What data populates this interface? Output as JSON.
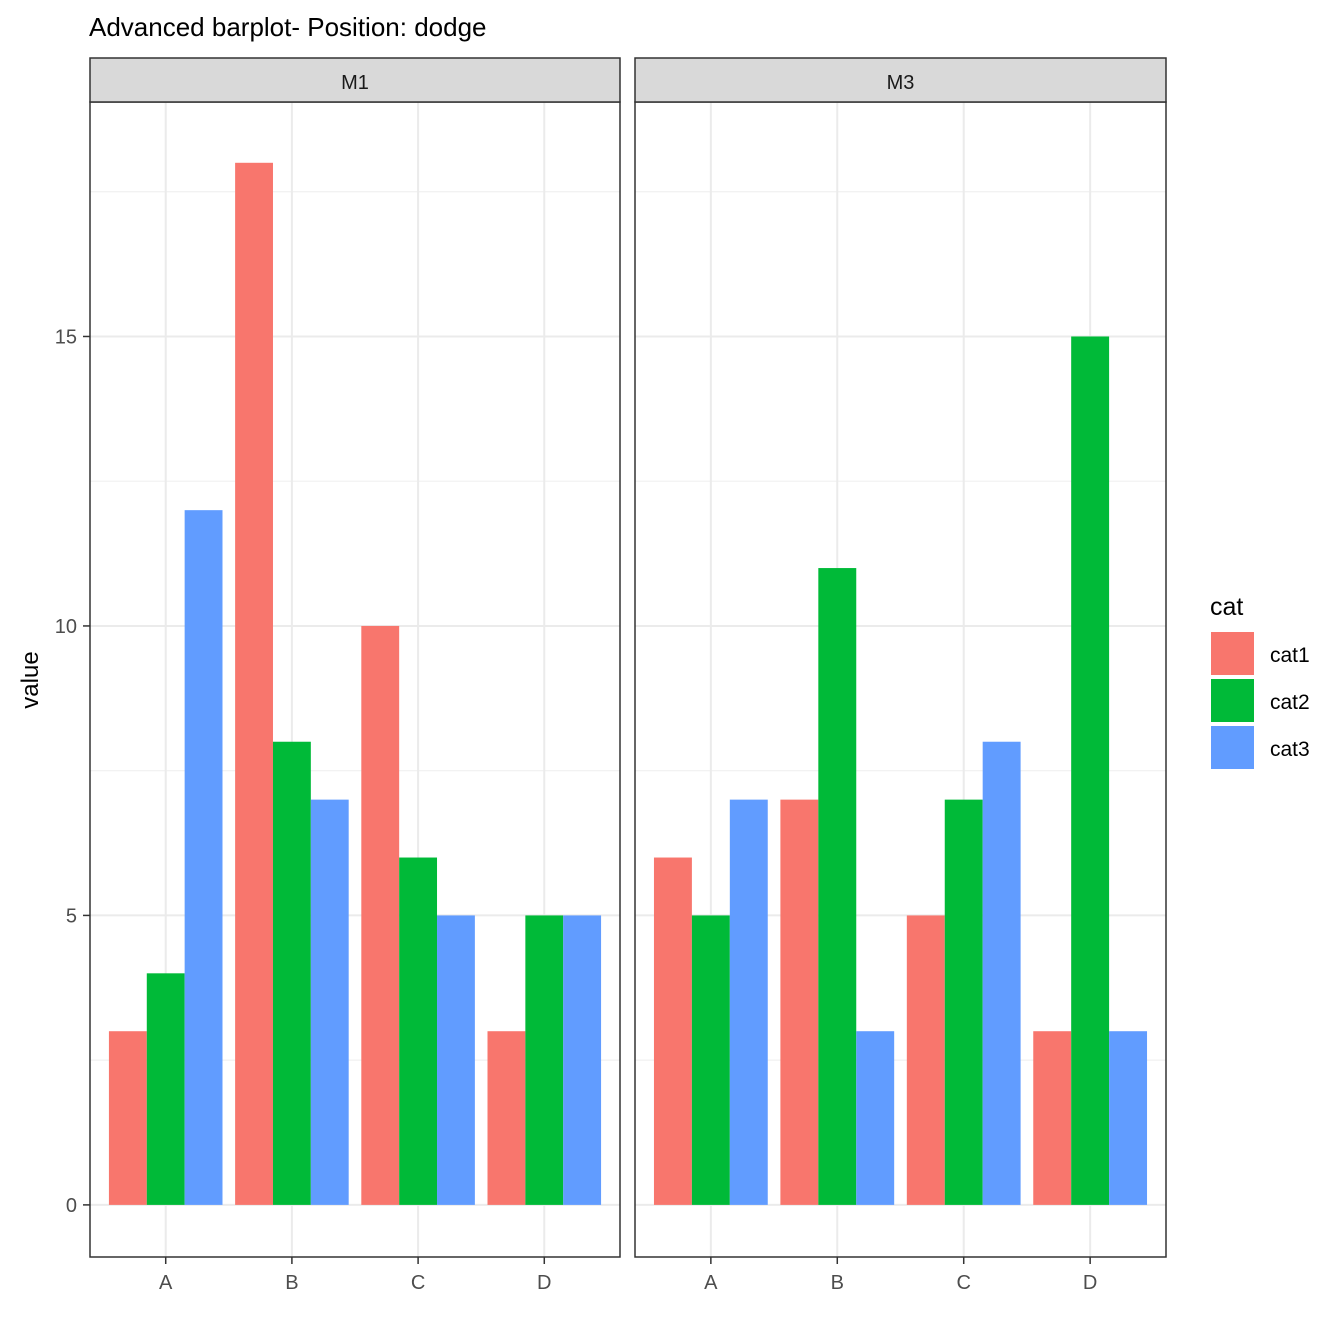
{
  "chart_data": {
    "type": "bar",
    "title": "Advanced barplot- Position: dodge",
    "xlabel": "",
    "ylabel": "value",
    "categories": [
      "A",
      "B",
      "C",
      "D"
    ],
    "y_ticks": [
      0,
      5,
      10,
      15
    ],
    "ylim": [
      -0.9,
      19.05
    ],
    "grid": true,
    "legend_position": "right",
    "legend_title": "cat",
    "series_names": [
      "cat1",
      "cat2",
      "cat3"
    ],
    "colors": {
      "cat1": "#F8766D",
      "cat2": "#00BA38",
      "cat3": "#619CFF"
    },
    "panels": [
      {
        "name": "M1",
        "series": [
          {
            "name": "cat1",
            "values": [
              3,
              18,
              10,
              3
            ]
          },
          {
            "name": "cat2",
            "values": [
              4,
              8,
              6,
              5
            ]
          },
          {
            "name": "cat3",
            "values": [
              12,
              7,
              5,
              5
            ]
          }
        ]
      },
      {
        "name": "M3",
        "series": [
          {
            "name": "cat1",
            "values": [
              6,
              7,
              5,
              3
            ]
          },
          {
            "name": "cat2",
            "values": [
              5,
              11,
              7,
              15
            ]
          },
          {
            "name": "cat3",
            "values": [
              7,
              3,
              8,
              3
            ]
          }
        ]
      }
    ]
  }
}
